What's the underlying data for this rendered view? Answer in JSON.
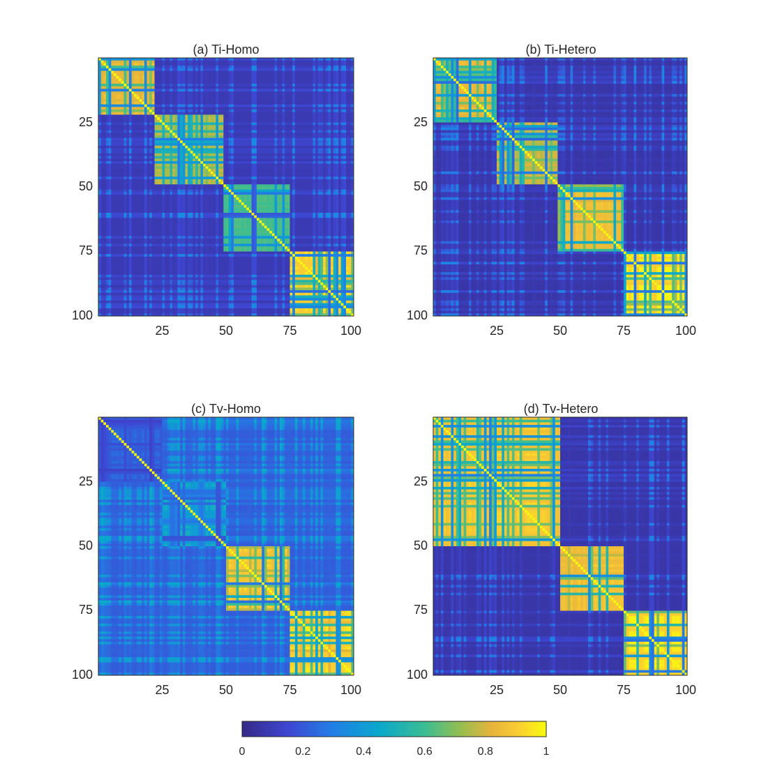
{
  "chart_data": [
    {
      "type": "heatmap",
      "title": "(a) Ti-Homo",
      "size": 100,
      "xticks": [
        25,
        50,
        75,
        100
      ],
      "yticks": [
        25,
        50,
        75,
        100
      ],
      "clim": [
        0,
        1
      ],
      "blocks": [
        {
          "start": 1,
          "end": 22,
          "level": 0.88
        },
        {
          "start": 23,
          "end": 49,
          "level": 0.8
        },
        {
          "start": 50,
          "end": 75,
          "level": 0.62
        },
        {
          "start": 76,
          "end": 100,
          "level": 0.99
        }
      ],
      "cross_level": 0.08,
      "noise": 0.35,
      "seed": 11
    },
    {
      "type": "heatmap",
      "title": "(b) Ti-Hetero",
      "size": 100,
      "xticks": [
        25,
        50,
        75,
        100
      ],
      "yticks": [
        25,
        50,
        75,
        100
      ],
      "clim": [
        0,
        1
      ],
      "blocks": [
        {
          "start": 1,
          "end": 25,
          "level": 0.88
        },
        {
          "start": 26,
          "end": 49,
          "level": 0.8
        },
        {
          "start": 50,
          "end": 75,
          "level": 0.9
        },
        {
          "start": 76,
          "end": 100,
          "level": 1.0
        }
      ],
      "cross_level": 0.06,
      "noise": 0.3,
      "seed": 23
    },
    {
      "type": "heatmap",
      "title": "(c) Tv-Homo",
      "size": 100,
      "xticks": [
        25,
        50,
        75,
        100
      ],
      "yticks": [
        25,
        50,
        75,
        100
      ],
      "clim": [
        0,
        1
      ],
      "blocks": [
        {
          "start": 1,
          "end": 25,
          "level": 0.18
        },
        {
          "start": 26,
          "end": 50,
          "level": 0.45
        },
        {
          "start": 51,
          "end": 75,
          "level": 0.95
        },
        {
          "start": 76,
          "end": 100,
          "level": 0.99
        }
      ],
      "cross_level": 0.2,
      "noise": 0.4,
      "seed": 37
    },
    {
      "type": "heatmap",
      "title": "(d) Tv-Hetero",
      "size": 100,
      "xticks": [
        25,
        50,
        75,
        100
      ],
      "yticks": [
        25,
        50,
        75,
        100
      ],
      "clim": [
        0,
        1
      ],
      "blocks": [
        {
          "start": 1,
          "end": 50,
          "level": 0.95
        },
        {
          "start": 51,
          "end": 75,
          "level": 0.92
        },
        {
          "start": 76,
          "end": 100,
          "level": 1.0
        }
      ],
      "cross_level": 0.06,
      "noise": 0.25,
      "seed": 53
    }
  ],
  "colorbar": {
    "colormap": "parula",
    "range": [
      0,
      1
    ],
    "ticks": [
      "0",
      "0.2",
      "0.4",
      "0.6",
      "0.8",
      "1"
    ]
  }
}
